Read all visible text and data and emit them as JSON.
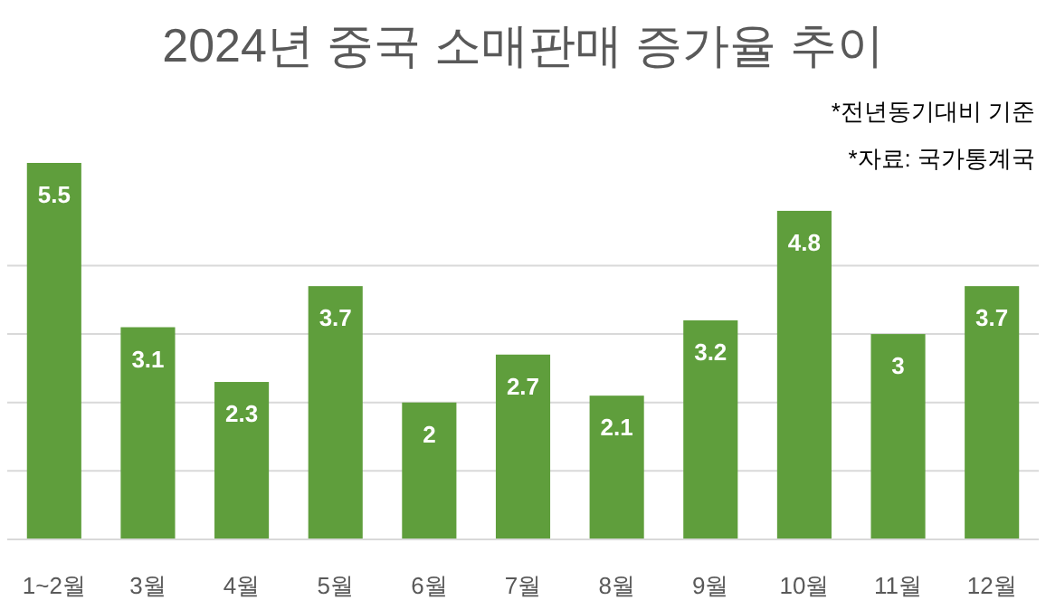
{
  "chart_data": {
    "type": "bar",
    "title": "2024년 중국 소매판매 증가율 추이",
    "categories": [
      "1~2월",
      "3월",
      "4월",
      "5월",
      "6월",
      "7월",
      "8월",
      "9월",
      "10월",
      "11월",
      "12월"
    ],
    "values": [
      5.5,
      3.1,
      2.3,
      3.7,
      2,
      2.7,
      2.1,
      3.2,
      4.8,
      3,
      3.7
    ],
    "color": "#5f9e3c",
    "yticks": [
      {
        "value": 1,
        "label": null
      },
      {
        "value": 2,
        "label": null
      },
      {
        "value": 3,
        "label": null
      },
      {
        "value": 4,
        "label": null
      }
    ],
    "grid": "y",
    "data_labels": true,
    "annotations": [
      "*전년동기대비 기준",
      "*자료: 국가통계국"
    ]
  }
}
